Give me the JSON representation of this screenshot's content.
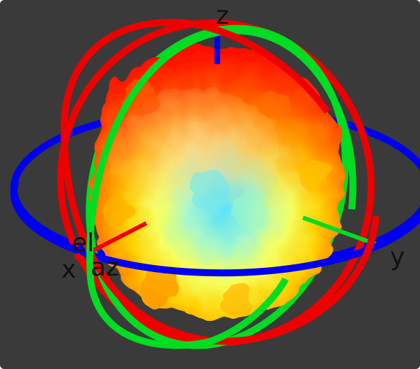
{
  "scene": {
    "background_color": "#3a3a3a",
    "title": "",
    "ring_colors": {
      "azimuth": "#0000ee",
      "xz": "#ee0000",
      "yz": "#00dd22"
    },
    "axis_colors": {
      "x": "#ee0000",
      "y": "#00dd22",
      "z": "#0000ee"
    },
    "pattern_colormap": [
      "#ff0000",
      "#ff7a00",
      "#ffd000",
      "#ffff40",
      "#c8ff70",
      "#60e8ff"
    ]
  },
  "labels": {
    "z": "z",
    "y": "y",
    "x": "x",
    "el": "el",
    "az": "az"
  }
}
